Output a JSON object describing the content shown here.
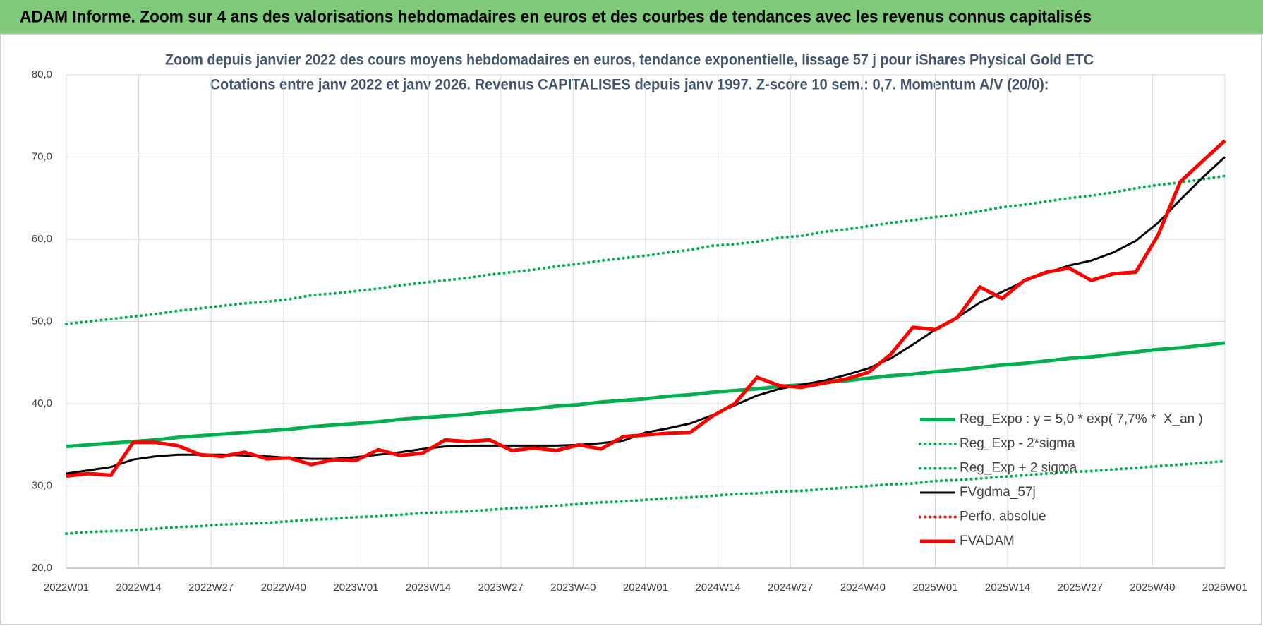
{
  "header": {
    "title": "ADAM Informe. Zoom sur 4 ans des valorisations hebdomadaires en euros et des courbes de tendances avec les revenus connus capitalisés"
  },
  "chart_data": {
    "type": "line",
    "title": "Zoom depuis janvier 2022 des cours moyens hebdomadaires en euros, tendance exponentielle, lissage 57 j pour iShares Physical Gold ETC",
    "subtitle": "Cotations entre janv 2022 et janv 2026. Revenus CAPITALISES depuis janv 1997. Z-score 10 sem.: 0,7. Momentum A/V (20/0):",
    "x": [
      0,
      4,
      8,
      12,
      16,
      20,
      24,
      28,
      32,
      36,
      40,
      44,
      48,
      52,
      56,
      60,
      64,
      68,
      72,
      76,
      80,
      84,
      88,
      92,
      96,
      100,
      104,
      108,
      112,
      116,
      120,
      124,
      128,
      132,
      136,
      140,
      144,
      148,
      152,
      156,
      160,
      164,
      168,
      172,
      176,
      180,
      184,
      188,
      192,
      196,
      200,
      204,
      208
    ],
    "xlim": [
      0,
      208
    ],
    "xticks": [
      {
        "value": 0,
        "label": "2022W01"
      },
      {
        "value": 13,
        "label": "2022W14"
      },
      {
        "value": 26,
        "label": "2022W27"
      },
      {
        "value": 39,
        "label": "2022W40"
      },
      {
        "value": 52,
        "label": "2023W01"
      },
      {
        "value": 65,
        "label": "2023W14"
      },
      {
        "value": 78,
        "label": "2023W27"
      },
      {
        "value": 91,
        "label": "2023W40"
      },
      {
        "value": 104,
        "label": "2024W01"
      },
      {
        "value": 117,
        "label": "2024W14"
      },
      {
        "value": 130,
        "label": "2024W27"
      },
      {
        "value": 143,
        "label": "2024W40"
      },
      {
        "value": 156,
        "label": "2025W01"
      },
      {
        "value": 169,
        "label": "2025W14"
      },
      {
        "value": 182,
        "label": "2025W27"
      },
      {
        "value": 195,
        "label": "2025W40"
      },
      {
        "value": 208,
        "label": "2026W01"
      }
    ],
    "ylim": [
      20,
      80
    ],
    "yticks": [
      {
        "value": 20,
        "label": "20,0"
      },
      {
        "value": 30,
        "label": "30,0"
      },
      {
        "value": 40,
        "label": "40,0"
      },
      {
        "value": 50,
        "label": "50,0"
      },
      {
        "value": 60,
        "label": "60,0"
      },
      {
        "value": 70,
        "label": "70,0"
      },
      {
        "value": 80,
        "label": "80,0"
      }
    ],
    "grid": true,
    "legend": "bottom-right",
    "series": [
      {
        "name": "Reg_Expo : y = 5,0 * exp( 7,7% *  X_an )",
        "color": "#00b050",
        "style": "solid",
        "values": [
          34.8,
          35.0,
          35.2,
          35.4,
          35.6,
          35.9,
          36.1,
          36.3,
          36.5,
          36.7,
          36.9,
          37.2,
          37.4,
          37.6,
          37.8,
          38.1,
          38.3,
          38.5,
          38.7,
          39.0,
          39.2,
          39.4,
          39.7,
          39.9,
          40.2,
          40.4,
          40.6,
          40.9,
          41.1,
          41.4,
          41.6,
          41.8,
          42.1,
          42.3,
          42.6,
          42.8,
          43.1,
          43.4,
          43.6,
          43.9,
          44.1,
          44.4,
          44.7,
          44.9,
          45.2,
          45.5,
          45.7,
          46.0,
          46.3,
          46.6,
          46.8,
          47.1,
          47.4
        ]
      },
      {
        "name": "Reg_Exp - 2*sigma",
        "color": "#00b050",
        "style": "dotted",
        "values": [
          24.2,
          24.4,
          24.5,
          24.6,
          24.8,
          25.0,
          25.1,
          25.3,
          25.4,
          25.5,
          25.7,
          25.9,
          26.0,
          26.2,
          26.3,
          26.5,
          26.7,
          26.8,
          26.9,
          27.1,
          27.3,
          27.4,
          27.6,
          27.8,
          28.0,
          28.1,
          28.3,
          28.5,
          28.6,
          28.8,
          29.0,
          29.1,
          29.3,
          29.4,
          29.6,
          29.8,
          30.0,
          30.2,
          30.3,
          30.6,
          30.7,
          30.9,
          31.1,
          31.3,
          31.5,
          31.7,
          31.8,
          32.0,
          32.2,
          32.4,
          32.6,
          32.8,
          33.0
        ]
      },
      {
        "name": "Reg_Exp + 2 sigma",
        "color": "#00b050",
        "style": "dotted",
        "values": [
          49.7,
          50.0,
          50.3,
          50.6,
          50.9,
          51.3,
          51.6,
          51.9,
          52.2,
          52.4,
          52.7,
          53.2,
          53.4,
          53.7,
          54.0,
          54.4,
          54.7,
          55.0,
          55.3,
          55.7,
          56.0,
          56.3,
          56.7,
          57.0,
          57.4,
          57.7,
          58.0,
          58.4,
          58.7,
          59.2,
          59.4,
          59.7,
          60.2,
          60.4,
          60.9,
          61.2,
          61.6,
          62.0,
          62.3,
          62.7,
          63.0,
          63.4,
          63.9,
          64.2,
          64.6,
          65.0,
          65.3,
          65.7,
          66.2,
          66.6,
          66.9,
          67.3,
          67.7
        ]
      },
      {
        "name": "FVgdma_57j",
        "color": "#000000",
        "style": "solid",
        "values": [
          31.5,
          31.9,
          32.3,
          33.2,
          33.6,
          33.8,
          33.8,
          33.8,
          33.7,
          33.6,
          33.4,
          33.3,
          33.3,
          33.5,
          33.8,
          34.1,
          34.5,
          34.8,
          34.9,
          34.9,
          34.9,
          34.9,
          34.9,
          35.0,
          35.2,
          35.5,
          36.5,
          37.0,
          37.6,
          38.6,
          39.8,
          41.0,
          41.8,
          42.3,
          42.8,
          43.5,
          44.3,
          45.5,
          47.2,
          49.0,
          50.5,
          52.3,
          53.6,
          54.9,
          55.9,
          56.8,
          57.4,
          58.4,
          59.8,
          62.0,
          64.8,
          67.5,
          70.0
        ]
      },
      {
        "name": "Perfo. absolue",
        "color": "#ff0000",
        "style": "dotted"
      },
      {
        "name": "FVADAM",
        "color": "#ff0000",
        "style": "thick",
        "values": [
          31.2,
          31.5,
          31.3,
          35.3,
          35.3,
          34.9,
          33.8,
          33.6,
          34.1,
          33.3,
          33.4,
          32.6,
          33.2,
          33.1,
          34.4,
          33.7,
          34.0,
          35.6,
          35.4,
          35.6,
          34.3,
          34.6,
          34.3,
          35.0,
          34.5,
          36.0,
          36.2,
          36.4,
          36.5,
          38.5,
          40.0,
          43.2,
          42.2,
          42.0,
          42.5,
          43.0,
          43.8,
          46.0,
          49.3,
          49.0,
          50.5,
          54.2,
          52.8,
          55.0,
          56.0,
          56.5,
          55.0,
          55.8,
          56.0,
          60.5,
          67.0,
          69.5,
          72.0
        ]
      }
    ]
  }
}
